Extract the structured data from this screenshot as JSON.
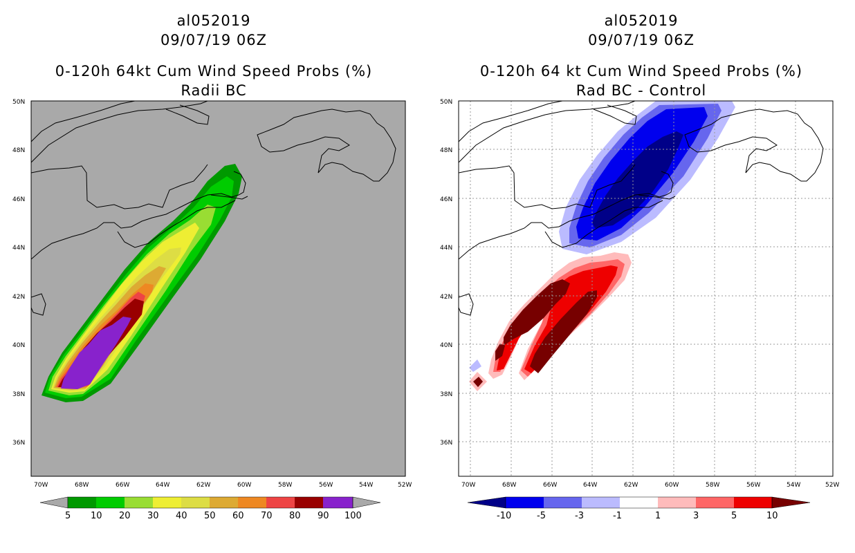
{
  "left_panel": {
    "storm_id": "al052019",
    "datetime": "09/07/19 06Z",
    "title": "0-120h 64kt Cum Wind Speed Probs (%)",
    "subtitle": "Radii BC",
    "background_color": "#a9a9a9",
    "colorbar": {
      "labels": [
        "5",
        "10",
        "20",
        "30",
        "40",
        "50",
        "60",
        "70",
        "80",
        "90",
        "100"
      ],
      "colors": [
        "#009900",
        "#00cc00",
        "#99dd33",
        "#eeee33",
        "#dddd44",
        "#ddaa33",
        "#ee8822",
        "#ee4444",
        "#990000",
        "#8822cc"
      ]
    }
  },
  "right_panel": {
    "storm_id": "al052019",
    "datetime": "09/07/19 06Z",
    "title": "0-120h 64 kt Cum Wind Speed Probs (%)",
    "subtitle": "Rad BC - Control",
    "background_color": "#ffffff",
    "colorbar": {
      "labels": [
        "-10",
        "-5",
        "-3",
        "-1",
        "1",
        "3",
        "5",
        "10"
      ],
      "colors": [
        "#000088",
        "#0000ee",
        "#6666ee",
        "#bbbbff",
        "#ffffff",
        "#ffbbbb",
        "#ff6666",
        "#ee0000",
        "#770000"
      ]
    }
  },
  "map_axes": {
    "lat_labels": [
      "50N",
      "48N",
      "46N",
      "44N",
      "42N",
      "40N",
      "38N",
      "36N"
    ],
    "lon_labels": [
      "70W",
      "68W",
      "66W",
      "64W",
      "62W",
      "60W",
      "58W",
      "56W",
      "54W",
      "52W"
    ]
  }
}
